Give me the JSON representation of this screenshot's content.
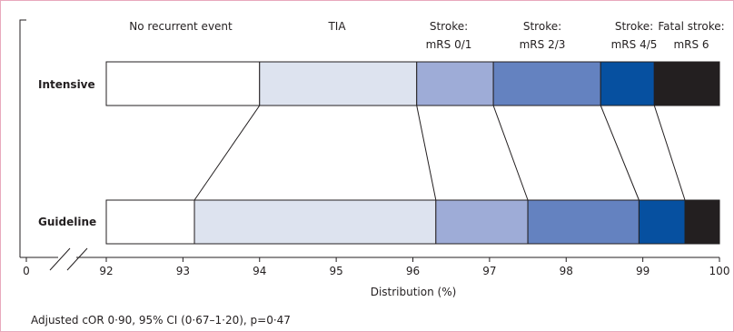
{
  "chart_data": {
    "type": "bar",
    "orientation": "horizontal",
    "stacked": true,
    "xlabel": "Distribution (%)",
    "xlim": [
      92,
      100
    ],
    "axis_break": true,
    "axis_start_label": "0",
    "xticks": [
      "92",
      "93",
      "94",
      "95",
      "96",
      "97",
      "98",
      "99",
      "100"
    ],
    "categories": [
      {
        "line1": "No recurrent event",
        "line2": ""
      },
      {
        "line1": "TIA",
        "line2": ""
      },
      {
        "line1": "Stroke:",
        "line2": "mRS 0/1"
      },
      {
        "line1": "Stroke:",
        "line2": "mRS 2/3"
      },
      {
        "line1": "Stroke:",
        "line2": "mRS 4/5"
      },
      {
        "line1": "Fatal stroke:",
        "line2": "mRS 6"
      }
    ],
    "colors": [
      "#ffffff",
      "#dde3ef",
      "#9eacd7",
      "#6482c0",
      "#0650a0",
      "#231f20"
    ],
    "rows": [
      {
        "name": "Intensive",
        "cumulative": [
          94.0,
          96.05,
          97.05,
          98.45,
          99.15,
          100
        ]
      },
      {
        "name": "Guideline",
        "cumulative": [
          93.15,
          96.3,
          97.5,
          98.95,
          99.55,
          100
        ]
      }
    ],
    "legend": "column headers above bars",
    "grid": false
  },
  "footnote": "Adjusted cOR 0·90, 95% CI (0·67–1·20), p=0·47",
  "frame_color": "#e8a9bd"
}
